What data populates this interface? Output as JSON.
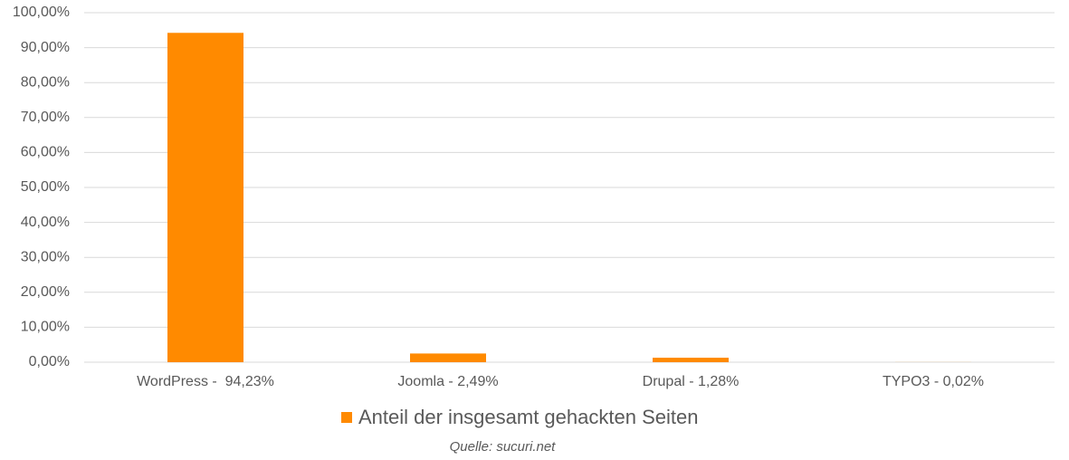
{
  "chart_data": {
    "type": "bar",
    "categories": [
      "WordPress -  94,23%",
      "Joomla - 2,49%",
      "Drupal - 1,28%",
      "TYPO3 - 0,02%"
    ],
    "series": [
      {
        "name": "Anteil der insgesamt gehackten Seiten",
        "color": "#ff8a00",
        "values": [
          94.23,
          2.49,
          1.28,
          0.02
        ]
      }
    ],
    "ylim": [
      0,
      100
    ],
    "yticks": [
      {
        "value": 0,
        "label": "0,00%"
      },
      {
        "value": 10,
        "label": "10,00%"
      },
      {
        "value": 20,
        "label": "20,00%"
      },
      {
        "value": 30,
        "label": "30,00%"
      },
      {
        "value": 40,
        "label": "40,00%"
      },
      {
        "value": 50,
        "label": "50,00%"
      },
      {
        "value": 60,
        "label": "60,00%"
      },
      {
        "value": 70,
        "label": "70,00%"
      },
      {
        "value": 80,
        "label": "80,00%"
      },
      {
        "value": 90,
        "label": "90,00%"
      },
      {
        "value": 100,
        "label": "100,00%"
      }
    ],
    "grid": true,
    "legend": "bottom",
    "source": "Quelle: sucuri.net"
  }
}
